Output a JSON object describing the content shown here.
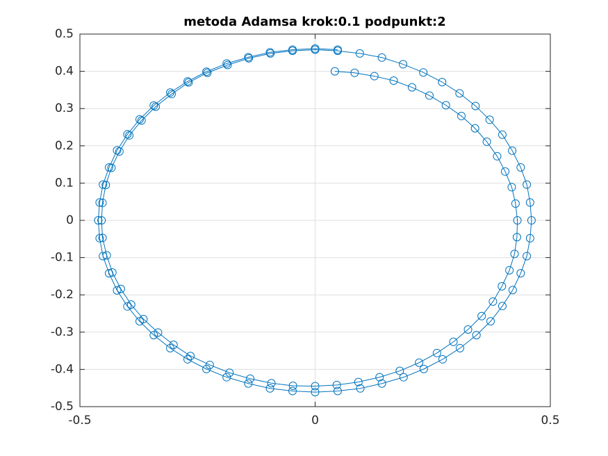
{
  "chart_data": {
    "type": "line",
    "title": "metoda Adamsa krok:0.1 podpunkt:2",
    "color": "#0072bd",
    "marker": "circle",
    "grid": true,
    "xlim": [
      -0.5,
      0.5
    ],
    "xticks": [
      -0.5,
      0,
      0.5
    ],
    "ylim": [
      -0.5,
      0.5
    ],
    "yticks": [
      -0.5,
      -0.4,
      -0.3,
      -0.2,
      -0.1,
      0,
      0.1,
      0.2,
      0.3,
      0.4,
      0.5
    ],
    "x": [
      0.042,
      0.084,
      0.126,
      0.167,
      0.206,
      0.243,
      0.278,
      0.311,
      0.34,
      0.365,
      0.387,
      0.404,
      0.418,
      0.426,
      0.43,
      0.429,
      0.424,
      0.413,
      0.397,
      0.378,
      0.354,
      0.325,
      0.294,
      0.259,
      0.221,
      0.18,
      0.137,
      0.092,
      0.046,
      0,
      -0.047,
      -0.093,
      -0.138,
      -0.182,
      -0.224,
      -0.265,
      -0.301,
      -0.334,
      -0.365,
      -0.391,
      -0.413,
      -0.431,
      -0.443,
      -0.452,
      -0.454,
      -0.452,
      -0.445,
      -0.433,
      -0.416,
      -0.395,
      -0.369,
      -0.339,
      -0.305,
      -0.269,
      -0.229,
      -0.186,
      -0.141,
      -0.095,
      -0.048,
      0,
      0.048,
      0.095,
      0.142,
      0.187,
      0.23,
      0.27,
      0.307,
      0.341,
      0.371,
      0.398,
      0.419,
      0.437,
      0.45,
      0.457,
      0.46,
      0.457,
      0.45,
      0.437,
      0.42,
      0.398,
      0.373,
      0.343,
      0.308,
      0.271,
      0.231,
      0.188,
      0.142,
      0.096,
      0.048,
      0,
      -0.048,
      -0.096,
      -0.142,
      -0.188,
      -0.231,
      -0.271,
      -0.308,
      -0.343,
      -0.373,
      -0.399,
      -0.421,
      -0.438,
      -0.451,
      -0.458,
      -0.461,
      -0.458,
      -0.451,
      -0.438,
      -0.421,
      -0.399,
      -0.373,
      -0.343,
      -0.308,
      -0.271,
      -0.231,
      -0.188,
      -0.142,
      -0.096,
      -0.048,
      0,
      0.048
    ],
    "values": [
      0.4,
      0.396,
      0.387,
      0.375,
      0.357,
      0.335,
      0.309,
      0.28,
      0.247,
      0.211,
      0.172,
      0.131,
      0.089,
      0.045,
      0,
      -0.045,
      -0.09,
      -0.134,
      -0.177,
      -0.218,
      -0.257,
      -0.293,
      -0.326,
      -0.356,
      -0.382,
      -0.404,
      -0.421,
      -0.434,
      -0.442,
      -0.445,
      -0.444,
      -0.437,
      -0.425,
      -0.409,
      -0.388,
      -0.364,
      -0.334,
      -0.301,
      -0.265,
      -0.226,
      -0.184,
      -0.14,
      -0.094,
      -0.047,
      0,
      0.047,
      0.095,
      0.141,
      0.185,
      0.228,
      0.268,
      0.305,
      0.339,
      0.37,
      0.396,
      0.417,
      0.435,
      0.448,
      0.455,
      0.458,
      0.455,
      0.448,
      0.437,
      0.419,
      0.397,
      0.371,
      0.341,
      0.307,
      0.27,
      0.23,
      0.187,
      0.142,
      0.096,
      0.048,
      0,
      -0.048,
      -0.096,
      -0.142,
      -0.187,
      -0.23,
      -0.271,
      -0.308,
      -0.343,
      -0.373,
      -0.399,
      -0.421,
      -0.438,
      -0.451,
      -0.458,
      -0.461,
      -0.458,
      -0.451,
      -0.438,
      -0.421,
      -0.399,
      -0.373,
      -0.343,
      -0.308,
      -0.271,
      -0.231,
      -0.188,
      -0.142,
      -0.096,
      -0.048,
      0,
      0.048,
      0.096,
      0.142,
      0.188,
      0.231,
      0.271,
      0.308,
      0.343,
      0.373,
      0.399,
      0.421,
      0.438,
      0.451,
      0.458,
      0.461,
      0.458
    ]
  }
}
